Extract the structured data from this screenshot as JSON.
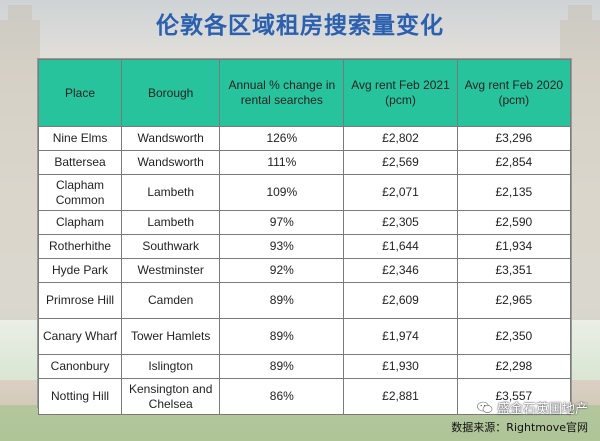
{
  "title": "伦敦各区域租房搜索量变化",
  "table": {
    "headers": [
      "Place",
      "Borough",
      "Annual % change in rental searches",
      "Avg rent Feb 2021 (pcm)",
      "Avg rent Feb 2020 (pcm)"
    ],
    "rows": [
      [
        "Nine Elms",
        "Wandsworth",
        "126%",
        "£2,802",
        "£3,296"
      ],
      [
        "Battersea",
        "Wandsworth",
        "111%",
        "£2,569",
        "£2,854"
      ],
      [
        "Clapham Common",
        "Lambeth",
        "109%",
        "£2,071",
        "£2,135"
      ],
      [
        "Clapham",
        "Lambeth",
        "97%",
        "£2,305",
        "£2,590"
      ],
      [
        "Rotherhithe",
        "Southwark",
        "93%",
        "£1,644",
        "£1,934"
      ],
      [
        "Hyde Park",
        "Westminster",
        "92%",
        "£2,346",
        "£3,351"
      ],
      [
        "Primrose Hill",
        "Camden",
        "89%",
        "£2,609",
        "£2,965"
      ],
      [
        "Canary Wharf",
        "Tower Hamlets",
        "89%",
        "£1,974",
        "£2,350"
      ],
      [
        "Canonbury",
        "Islington",
        "89%",
        "£1,930",
        "£2,298"
      ],
      [
        "Notting Hill",
        "Kensington and Chelsea",
        "86%",
        "£2,881",
        "£3,557"
      ]
    ]
  },
  "footer": {
    "brand": "盛金石英国地产",
    "source": "数据来源：Rightmove官网",
    "icon": "wechat-icon"
  },
  "colors": {
    "title": "#2b5fb0",
    "header_bg": "#27c39d"
  }
}
